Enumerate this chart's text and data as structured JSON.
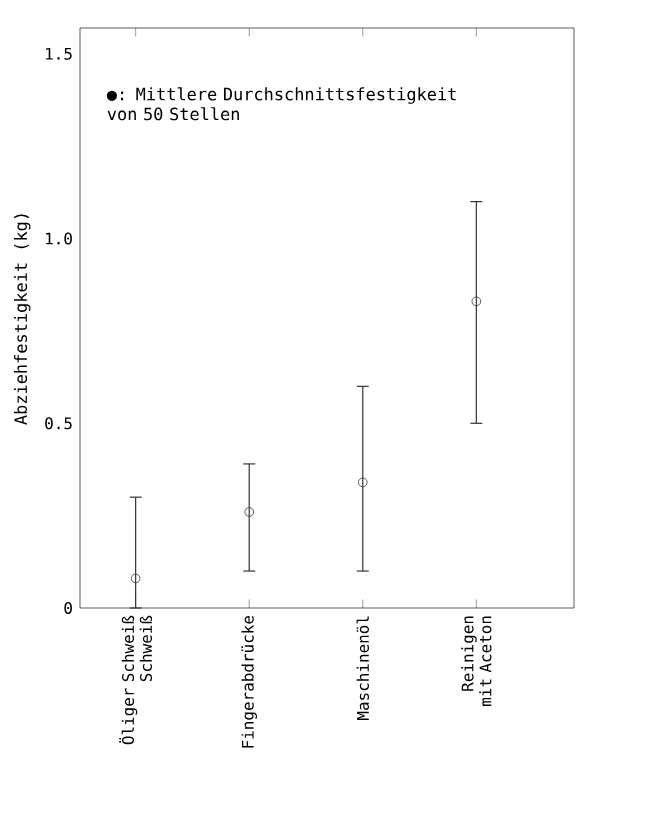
{
  "chart_data": {
    "type": "scatter",
    "ylabel": "Abziehfestigkeit (kg)",
    "annotations": [
      "●: Mittlere Durchschnittsfestigkeit von 50 Stellen"
    ],
    "categories": [
      "Öliger Schweiß Schweiß",
      "Fingerabdrücke",
      "Maschinenöl",
      "Reinigen mit Aceton"
    ],
    "values": [
      0.08,
      0.26,
      0.34,
      0.83
    ],
    "errors": [
      [
        0,
        0.3
      ],
      [
        0.1,
        0.39
      ],
      [
        0.1,
        0.6
      ],
      [
        0.5,
        1.1
      ]
    ],
    "color": "#333333",
    "marker": "circle",
    "ylim": [
      0,
      1.57
    ],
    "yticks": [
      0,
      0.5,
      {
        "value": 1,
        "label": "1.0"
      },
      1.5
    ]
  }
}
